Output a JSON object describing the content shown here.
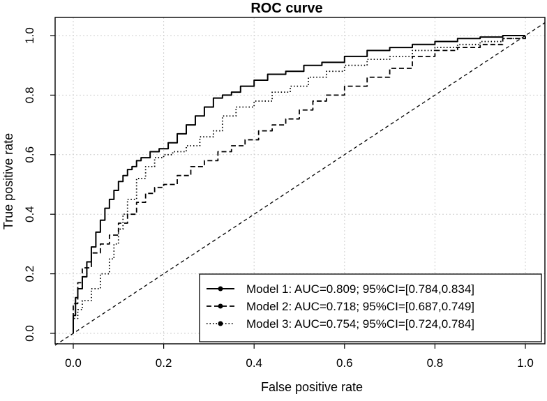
{
  "chart_data": {
    "type": "line",
    "title": "ROC curve",
    "xlabel": "False positive rate",
    "ylabel": "True positive rate",
    "xlim": [
      0,
      1
    ],
    "ylim": [
      0,
      1
    ],
    "xticks": [
      "0.0",
      "0.2",
      "0.4",
      "0.6",
      "0.8",
      "1.0"
    ],
    "yticks": [
      "0.0",
      "0.2",
      "0.4",
      "0.6",
      "0.8",
      "1.0"
    ],
    "grid": true,
    "legend_position": "bottom-right",
    "diagonal_reference": true,
    "series": [
      {
        "name": "Model 1: AUC=0.809; 95%CI=[0.784,0.834]",
        "style": "solid",
        "x": [
          0.0,
          0.0,
          0.005,
          0.01,
          0.02,
          0.03,
          0.04,
          0.05,
          0.06,
          0.07,
          0.08,
          0.09,
          0.1,
          0.11,
          0.12,
          0.13,
          0.14,
          0.15,
          0.17,
          0.19,
          0.21,
          0.23,
          0.25,
          0.27,
          0.29,
          0.31,
          0.33,
          0.35,
          0.37,
          0.4,
          0.43,
          0.47,
          0.51,
          0.55,
          0.6,
          0.65,
          0.7,
          0.75,
          0.8,
          0.85,
          0.9,
          0.95,
          1.0
        ],
        "y": [
          0.0,
          0.06,
          0.12,
          0.15,
          0.19,
          0.24,
          0.29,
          0.34,
          0.38,
          0.42,
          0.45,
          0.48,
          0.51,
          0.53,
          0.55,
          0.56,
          0.58,
          0.59,
          0.61,
          0.62,
          0.64,
          0.67,
          0.7,
          0.73,
          0.76,
          0.79,
          0.8,
          0.81,
          0.83,
          0.85,
          0.87,
          0.88,
          0.9,
          0.91,
          0.93,
          0.95,
          0.96,
          0.97,
          0.98,
          0.99,
          0.995,
          1.0,
          1.0
        ]
      },
      {
        "name": "Model 2: AUC=0.718; 95%CI=[0.687,0.749]",
        "style": "dashed",
        "x": [
          0.0,
          0.0,
          0.01,
          0.02,
          0.04,
          0.06,
          0.08,
          0.1,
          0.12,
          0.14,
          0.16,
          0.18,
          0.2,
          0.23,
          0.26,
          0.29,
          0.32,
          0.35,
          0.38,
          0.41,
          0.44,
          0.47,
          0.5,
          0.53,
          0.56,
          0.6,
          0.65,
          0.7,
          0.75,
          0.8,
          0.85,
          0.9,
          0.95,
          1.0
        ],
        "y": [
          0.0,
          0.1,
          0.17,
          0.22,
          0.27,
          0.3,
          0.33,
          0.37,
          0.4,
          0.44,
          0.47,
          0.49,
          0.5,
          0.53,
          0.56,
          0.58,
          0.61,
          0.63,
          0.65,
          0.68,
          0.7,
          0.72,
          0.75,
          0.78,
          0.8,
          0.83,
          0.86,
          0.89,
          0.93,
          0.95,
          0.96,
          0.97,
          0.99,
          1.0
        ]
      },
      {
        "name": "Model 3: AUC=0.754; 95%CI=[0.724,0.784]",
        "style": "dotted",
        "x": [
          0.0,
          0.0,
          0.01,
          0.02,
          0.04,
          0.06,
          0.08,
          0.09,
          0.1,
          0.11,
          0.12,
          0.14,
          0.16,
          0.18,
          0.2,
          0.22,
          0.25,
          0.28,
          0.31,
          0.33,
          0.36,
          0.4,
          0.44,
          0.48,
          0.52,
          0.56,
          0.6,
          0.65,
          0.7,
          0.75,
          0.8,
          0.85,
          0.9,
          0.95,
          1.0
        ],
        "y": [
          0.0,
          0.05,
          0.08,
          0.11,
          0.15,
          0.2,
          0.25,
          0.3,
          0.35,
          0.4,
          0.45,
          0.52,
          0.56,
          0.59,
          0.6,
          0.61,
          0.63,
          0.66,
          0.68,
          0.73,
          0.76,
          0.78,
          0.81,
          0.83,
          0.86,
          0.88,
          0.9,
          0.92,
          0.93,
          0.95,
          0.96,
          0.97,
          0.98,
          0.99,
          1.0
        ]
      }
    ]
  }
}
